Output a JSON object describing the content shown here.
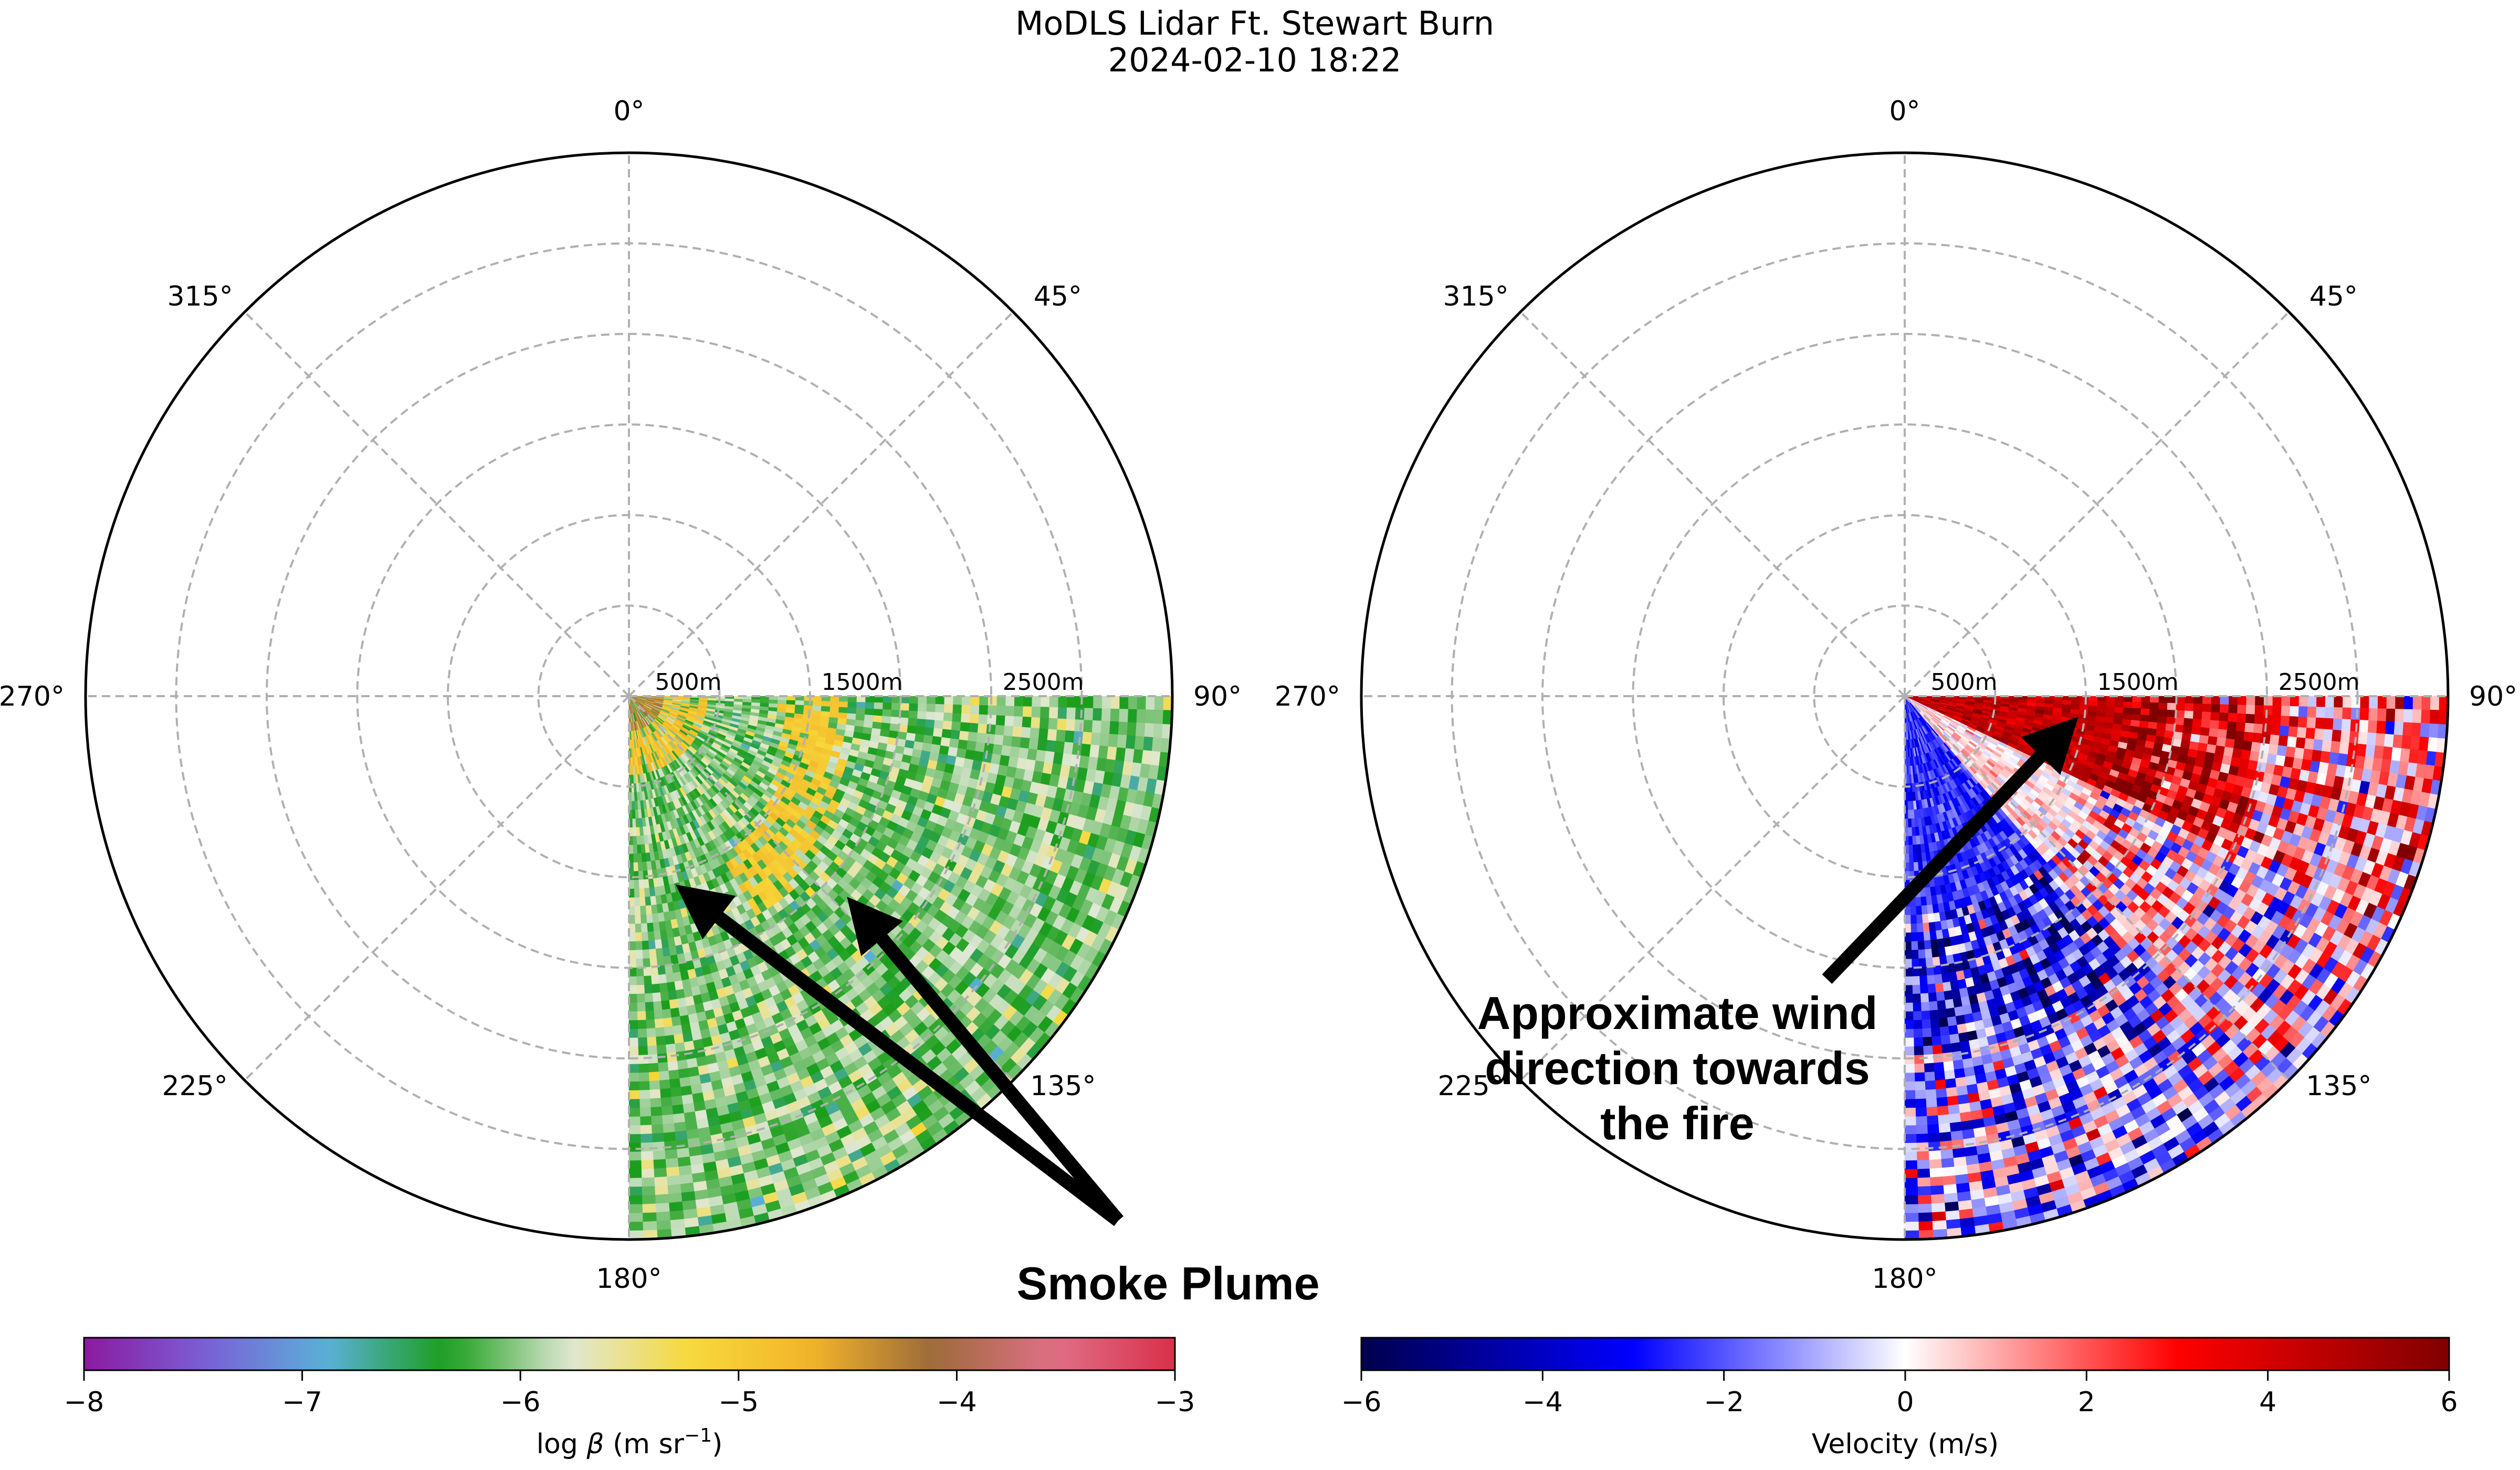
{
  "figure": {
    "title_line1": "MoDLS Lidar Ft. Stewart Burn",
    "title_line2": "2024-02-10 18:22"
  },
  "chart_data": [
    {
      "type": "heatmap",
      "projection": "polar",
      "variable": "log β (backscatter)",
      "theta_direction": "clockwise",
      "theta_zero": "north",
      "angle_ticks": [
        "0°",
        "45°",
        "90°",
        "135°",
        "180°",
        "225°",
        "270°",
        "315°"
      ],
      "range_ticks": [
        "500m",
        "1500m",
        "2500m"
      ],
      "rmax_m": 3000,
      "scan_sector_deg": [
        90,
        180
      ],
      "grid": true,
      "colorbar": {
        "label_prefix": "log ",
        "label_symbol": "β",
        "label_suffix": " (m sr",
        "label_sup": "−1",
        "label_close": ")",
        "ticks": [
          "−8",
          "−7",
          "−6",
          "−5",
          "−4",
          "−3"
        ],
        "range": [
          -8,
          -3
        ],
        "colors": [
          "#8b1a9e",
          "#7a5fd6",
          "#5bb0d8",
          "#1a9e1a",
          "#dfe8d5",
          "#f7d93a",
          "#f2b42a",
          "#9c6b3a",
          "#e07088",
          "#d8304a"
        ]
      },
      "features": [
        {
          "name": "near-field aerosol",
          "range_m": [
            0,
            500
          ],
          "value": -4.8
        },
        {
          "name": "smoke plume band",
          "range_m": [
            800,
            1300
          ],
          "value": -5.0
        },
        {
          "name": "background",
          "value": -6.0
        }
      ],
      "annotation": "Smoke Plume"
    },
    {
      "type": "heatmap",
      "projection": "polar",
      "variable": "Radial velocity",
      "theta_direction": "clockwise",
      "theta_zero": "north",
      "angle_ticks": [
        "0°",
        "45°",
        "90°",
        "135°",
        "180°",
        "225°",
        "270°",
        "315°"
      ],
      "range_ticks": [
        "500m",
        "1500m",
        "2500m"
      ],
      "rmax_m": 3000,
      "scan_sector_deg": [
        90,
        180
      ],
      "grid": true,
      "colorbar": {
        "label": "Velocity (m/s)",
        "ticks": [
          "−6",
          "−4",
          "−2",
          "0",
          "2",
          "4",
          "6"
        ],
        "range": [
          -6,
          6
        ],
        "colors": [
          "#00004c",
          "#0000ff",
          "#ffffff",
          "#ff0000",
          "#800000"
        ]
      },
      "features": [
        {
          "name": "receding flow near 90°",
          "angle_deg": [
            90,
            120
          ],
          "value": 4
        },
        {
          "name": "approaching flow near 150–180°",
          "angle_deg": [
            140,
            180
          ],
          "value": -3
        }
      ],
      "annotation_lines": [
        "Approximate wind",
        "direction towards",
        "the fire"
      ]
    }
  ]
}
